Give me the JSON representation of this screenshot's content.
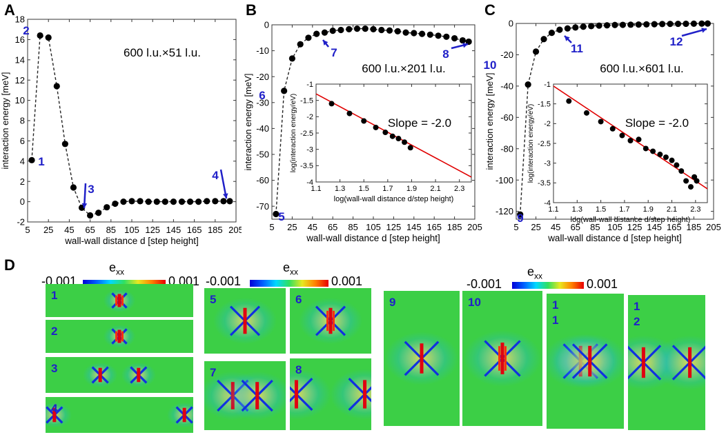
{
  "panels": {
    "A": "A",
    "B": "B",
    "C": "C",
    "D": "D"
  },
  "colors": {
    "marker": "#000000",
    "annotation": "#2020c8",
    "fit_line": "#e00000",
    "strain_bg": "#3ccf46"
  },
  "chart_data": [
    {
      "id": "A",
      "type": "scatter",
      "title": "600 l.u.×51 l.u.",
      "xlabel": "wall-wall distance d [step height]",
      "ylabel": "interaction energy [meV]",
      "xlim": [
        5,
        205
      ],
      "ylim": [
        -2,
        18
      ],
      "xticks": [
        5,
        25,
        45,
        65,
        85,
        105,
        125,
        145,
        165,
        185,
        205
      ],
      "xtick_labels": [
        "5",
        "25",
        "45",
        "65",
        "85",
        "105",
        "125",
        "145",
        "165",
        "185",
        "205"
      ],
      "yticks": [
        -2,
        0,
        2,
        4,
        6,
        8,
        10,
        12,
        14,
        16,
        18
      ],
      "ytick_labels": [
        "-2",
        "0",
        "2",
        "4",
        "6",
        "8",
        "10",
        "12",
        "14",
        "16",
        "18"
      ],
      "x": [
        9,
        17,
        25,
        33,
        41,
        49,
        57,
        65,
        73,
        81,
        89,
        97,
        105,
        113,
        121,
        129,
        137,
        145,
        153,
        161,
        169,
        177,
        185,
        193,
        199
      ],
      "y": [
        4.1,
        16.4,
        16.2,
        11.4,
        5.7,
        1.4,
        -0.6,
        -1.35,
        -1.1,
        -0.55,
        -0.2,
        0.0,
        0.05,
        0.05,
        0.0,
        0.0,
        0.0,
        0.0,
        0.0,
        0.0,
        0.0,
        0.05,
        0.05,
        0.05,
        0.05
      ],
      "annotations": [
        {
          "text": "1",
          "x": 9,
          "y": 4.1
        },
        {
          "text": "2",
          "x": 17,
          "y": 16.4
        },
        {
          "text": "3",
          "x": 57,
          "y": -0.6
        },
        {
          "text": "4",
          "x": 199,
          "y": 0.05
        }
      ]
    },
    {
      "id": "B",
      "type": "scatter",
      "title": "600 l.u.×201 l.u.",
      "xlabel": "wall-wall distance d [step height]",
      "ylabel": "interaction energy [meV]",
      "xlim": [
        5,
        205
      ],
      "ylim": [
        -75,
        0
      ],
      "xticks": [
        5,
        25,
        45,
        65,
        85,
        105,
        125,
        145,
        165,
        185,
        205
      ],
      "xtick_labels": [
        "5",
        "25",
        "45",
        "65",
        "85",
        "105",
        "125",
        "145",
        "165",
        "185",
        "205"
      ],
      "yticks": [
        -70,
        -60,
        -50,
        -40,
        -30,
        -20,
        -10,
        0
      ],
      "ytick_labels": [
        "-70",
        "-60",
        "-50",
        "-40",
        "-30",
        "-20",
        "-10",
        "0"
      ],
      "x": [
        9,
        17,
        25,
        33,
        41,
        49,
        57,
        65,
        73,
        81,
        89,
        97,
        105,
        113,
        121,
        129,
        137,
        145,
        153,
        161,
        169,
        177,
        185,
        193,
        199
      ],
      "y": [
        -73,
        -25.5,
        -13,
        -7.5,
        -5,
        -3.5,
        -3,
        -2.3,
        -2,
        -1.7,
        -1.5,
        -1.5,
        -1.7,
        -2,
        -2.2,
        -2.5,
        -3,
        -3.2,
        -3.5,
        -3.8,
        -4.2,
        -4.6,
        -5.2,
        -6,
        -6.5
      ],
      "annotations": [
        {
          "text": "5",
          "x": 9,
          "y": -73
        },
        {
          "text": "6",
          "x": 17,
          "y": -25.5
        },
        {
          "text": "7",
          "x": 65,
          "y": -2.3
        },
        {
          "text": "8",
          "x": 199,
          "y": -6.5
        }
      ],
      "inset": {
        "text": "Slope = -2.0",
        "xlabel": "log(wall-wall distance d/step height)",
        "ylabel": "log(interaction energy/eV)",
        "xlim": [
          1.1,
          2.4
        ],
        "ylim": [
          -4,
          -1
        ],
        "xticks": [
          1.1,
          1.3,
          1.5,
          1.7,
          1.9,
          2.1,
          2.3
        ],
        "xtick_labels": [
          "1.1",
          "1.3",
          "1.5",
          "1.7",
          "1.9",
          "2.1",
          "2.3"
        ],
        "yticks": [
          -4,
          -3.5,
          -3,
          -2.5,
          -2,
          -1.5,
          -1
        ],
        "ytick_labels": [
          "-4",
          "-3.5",
          "-3",
          "-2.5",
          "-2",
          "-1.5",
          "-1"
        ],
        "x": [
          1.23,
          1.38,
          1.5,
          1.6,
          1.68,
          1.74,
          1.79,
          1.84,
          1.89
        ],
        "y": [
          -1.6,
          -1.9,
          -2.13,
          -2.33,
          -2.48,
          -2.6,
          -2.67,
          -2.78,
          -2.95
        ],
        "fit_x": [
          1.1,
          2.4
        ],
        "fit_y": [
          -1.3,
          -3.85
        ]
      }
    },
    {
      "id": "C",
      "type": "scatter",
      "title": "600 l.u.×601 l.u.",
      "xlabel": "wall-wall distance d [step height]",
      "ylabel": "interaction energy [meV]",
      "xlim": [
        5,
        205
      ],
      "ylim": [
        -125,
        0
      ],
      "xticks": [
        5,
        25,
        45,
        65,
        85,
        105,
        125,
        145,
        165,
        185,
        205
      ],
      "xtick_labels": [
        "5",
        "25",
        "45",
        "65",
        "85",
        "105",
        "125",
        "145",
        "165",
        "185",
        "205"
      ],
      "yticks": [
        -120,
        -100,
        -80,
        -60,
        -40,
        -20,
        0
      ],
      "ytick_labels": [
        "-120",
        "-100",
        "-80",
        "-60",
        "-40",
        "-20",
        "0"
      ],
      "x": [
        9,
        17,
        25,
        33,
        41,
        49,
        57,
        65,
        73,
        81,
        89,
        97,
        105,
        113,
        121,
        129,
        137,
        145,
        153,
        161,
        169,
        177,
        185,
        193,
        199
      ],
      "y": [
        -122,
        -39,
        -18,
        -10,
        -6,
        -4,
        -3.2,
        -2.6,
        -2.1,
        -1.7,
        -1.4,
        -1.2,
        -1.0,
        -0.9,
        -0.8,
        -0.7,
        -0.6,
        -0.5,
        -0.4,
        -0.3,
        -0.25,
        -0.2,
        -0.15,
        -0.1,
        -0.05
      ],
      "annotations": [
        {
          "text": "9",
          "x": 9,
          "y": -122
        },
        {
          "text": "10",
          "x": 17,
          "y": -39
        },
        {
          "text": "11",
          "x": 57,
          "y": -3.2
        },
        {
          "text": "12",
          "x": 199,
          "y": -0.05
        }
      ],
      "inset": {
        "text": "Slope = -2.0",
        "xlabel": "log(wall-wall distance d/step height)",
        "ylabel": "log(interaction energy/eV)",
        "xlim": [
          1.1,
          2.4
        ],
        "ylim": [
          -4,
          -1
        ],
        "xticks": [
          1.1,
          1.3,
          1.5,
          1.7,
          1.9,
          2.1,
          2.3
        ],
        "xtick_labels": [
          "1.1",
          "1.3",
          "1.5",
          "1.7",
          "1.9",
          "2.1",
          "2.3"
        ],
        "yticks": [
          -4,
          -3.5,
          -3,
          -2.5,
          -2,
          -1.5,
          -1
        ],
        "ytick_labels": [
          "-4",
          "-3.5",
          "-3",
          "-2.5",
          "-2",
          "-1.5",
          "-1"
        ],
        "x": [
          1.23,
          1.38,
          1.5,
          1.6,
          1.68,
          1.75,
          1.82,
          1.88,
          1.94,
          2.0,
          2.05,
          2.1,
          2.14,
          2.18,
          2.22,
          2.26,
          2.29,
          2.31
        ],
        "y": [
          -1.43,
          -1.73,
          -1.95,
          -2.13,
          -2.3,
          -2.43,
          -2.4,
          -2.63,
          -2.7,
          -2.78,
          -2.85,
          -2.93,
          -3.05,
          -3.2,
          -3.45,
          -3.6,
          -3.35,
          -3.45
        ],
        "fit_x": [
          1.1,
          2.4
        ],
        "fit_y": [
          -1.05,
          -3.65
        ]
      }
    }
  ],
  "strain_maps": {
    "colorbars": [
      {
        "title": "e",
        "sub": "xx",
        "min": "-0.001",
        "max": "0.001"
      },
      {
        "title": "e",
        "sub": "xx",
        "min": "-0.001",
        "max": "0.001"
      },
      {
        "title": "e",
        "sub": "xx",
        "min": "-0.001",
        "max": "0.001"
      }
    ],
    "tiles": [
      {
        "label": "1",
        "walls": [
          0.5
        ],
        "pair": true
      },
      {
        "label": "2",
        "walls": [
          0.5
        ],
        "pair": true
      },
      {
        "label": "3",
        "walls": [
          0.37,
          0.63
        ],
        "pair": false
      },
      {
        "label": "4",
        "walls": [
          0.06,
          0.94
        ],
        "pair": false
      },
      {
        "label": "5",
        "walls": [
          0.5
        ],
        "pair": false
      },
      {
        "label": "6",
        "walls": [
          0.5
        ],
        "pair": true
      },
      {
        "label": "7",
        "walls": [
          0.35,
          0.65
        ],
        "pair": false
      },
      {
        "label": "8",
        "walls": [
          0.08,
          0.92
        ],
        "pair": false
      },
      {
        "label": "9",
        "walls": [
          0.5
        ],
        "pair": false
      },
      {
        "label": "10",
        "walls": [
          0.5
        ],
        "pair": true
      },
      {
        "label": "1\n1",
        "walls": [
          0.44,
          0.56
        ],
        "pair": false
      },
      {
        "label": "1\n2",
        "walls": [
          0.2,
          0.8
        ],
        "pair": false
      }
    ]
  }
}
